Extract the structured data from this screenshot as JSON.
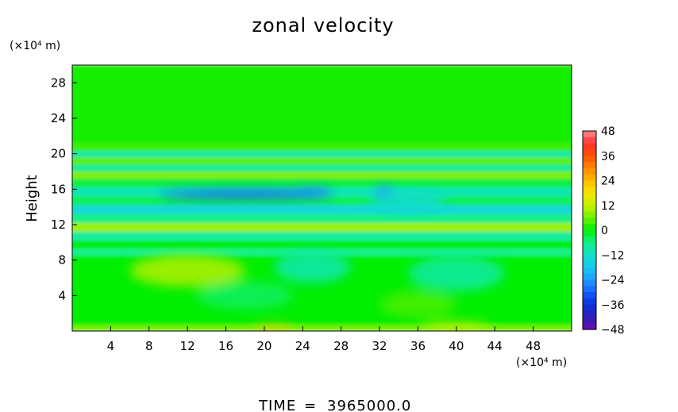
{
  "chart_data": {
    "type": "heatmap",
    "title": "zonal velocity",
    "ylabel": "Height",
    "xlabel": "",
    "x_unit": "(×10⁴ m)",
    "y_unit": "(×10⁴ m)",
    "xlim": [
      0,
      52
    ],
    "ylim": [
      0,
      30
    ],
    "x_ticks": [
      "4",
      "8",
      "12",
      "16",
      "20",
      "24",
      "28",
      "32",
      "36",
      "40",
      "44",
      "48"
    ],
    "x_tick_values": [
      4,
      8,
      12,
      16,
      20,
      24,
      28,
      32,
      36,
      40,
      44,
      48
    ],
    "y_ticks": [
      "4",
      "8",
      "12",
      "16",
      "20",
      "24",
      "28"
    ],
    "y_tick_values": [
      4,
      8,
      12,
      16,
      20,
      24,
      28
    ],
    "colorbar": {
      "labels": [
        "48",
        "36",
        "24",
        "12",
        "0",
        "−12",
        "−24",
        "−36",
        "−48"
      ],
      "values": [
        48,
        36,
        24,
        12,
        0,
        -12,
        -24,
        -36,
        -48
      ],
      "range": [
        -48,
        48
      ]
    },
    "bands": [
      {
        "y": [
          0,
          0.7
        ],
        "value": 6
      },
      {
        "y": [
          0.7,
          8.5
        ],
        "value": 0
      },
      {
        "y": [
          8.5,
          9.3
        ],
        "value": -6
      },
      {
        "y": [
          9.3,
          10.2
        ],
        "value": 0
      },
      {
        "y": [
          10.2,
          11.2
        ],
        "value": -8
      },
      {
        "y": [
          11.2,
          12.2
        ],
        "value": 9
      },
      {
        "y": [
          12.2,
          13.2
        ],
        "value": -6
      },
      {
        "y": [
          13.2,
          14.2
        ],
        "value": -14
      },
      {
        "y": [
          14.2,
          15.2
        ],
        "value": -4
      },
      {
        "y": [
          15.2,
          16.2
        ],
        "value": -10
      },
      {
        "y": [
          16.2,
          17.2
        ],
        "value": -3
      },
      {
        "y": [
          17.2,
          18.0
        ],
        "value": 7
      },
      {
        "y": [
          18.0,
          18.8
        ],
        "value": -7
      },
      {
        "y": [
          18.8,
          19.6
        ],
        "value": 5
      },
      {
        "y": [
          19.6,
          20.3
        ],
        "value": -9
      },
      {
        "y": [
          20.3,
          21.2
        ],
        "value": 3
      },
      {
        "y": [
          21.2,
          30
        ],
        "value": 1
      }
    ],
    "features": [
      {
        "x": 12,
        "y": 6.8,
        "rx": 6,
        "ry": 1.8,
        "value": 10
      },
      {
        "x": 25,
        "y": 7.2,
        "rx": 4,
        "ry": 1.8,
        "value": -9
      },
      {
        "x": 40,
        "y": 6.5,
        "rx": 5,
        "ry": 2.0,
        "value": -8
      },
      {
        "x": 18,
        "y": 4.0,
        "rx": 5,
        "ry": 1.6,
        "value": -4
      },
      {
        "x": 36,
        "y": 3.0,
        "rx": 4,
        "ry": 1.5,
        "value": 4
      },
      {
        "x": 18,
        "y": 15.4,
        "rx": 9,
        "ry": 0.45,
        "value": -32
      },
      {
        "x": 25,
        "y": 15.7,
        "rx": 2,
        "ry": 0.35,
        "value": -28
      },
      {
        "x": 32.5,
        "y": 15.6,
        "rx": 1,
        "ry": 0.7,
        "value": -26
      },
      {
        "x": 35,
        "y": 14.6,
        "rx": 4,
        "ry": 1.2,
        "value": -13
      },
      {
        "x": 21,
        "y": 0.25,
        "rx": 2,
        "ry": 0.35,
        "value": 22
      },
      {
        "x": 40,
        "y": 0.5,
        "rx": 3.5,
        "ry": 0.5,
        "value": 12
      }
    ]
  },
  "footer": {
    "time_label": "TIME",
    "time_sep": "=",
    "time_value": "3965000.0"
  }
}
